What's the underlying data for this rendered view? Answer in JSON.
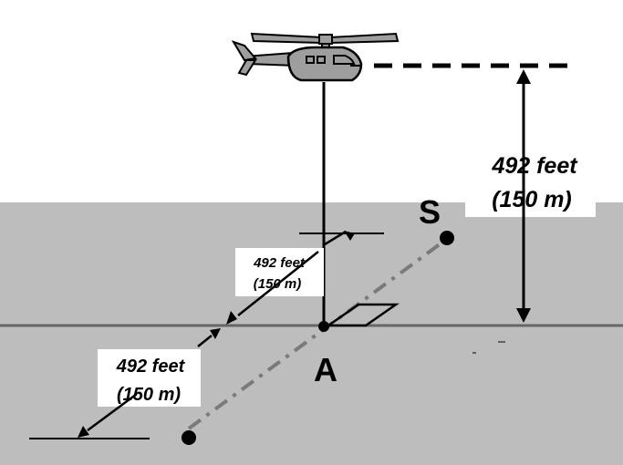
{
  "labels": {
    "altitude_feet": "492 feet",
    "altitude_m": "(150 m)",
    "upper_feet": "492 feet",
    "upper_m": "(150 m)",
    "lower_feet": "492 feet",
    "lower_m": "(150 m)",
    "point_s": "S",
    "point_a": "A"
  },
  "colors": {
    "sky": "#ffffff",
    "ground": "#bdbdbd",
    "horizon_line": "#666666",
    "flight_path": "#7a7a7a",
    "helicopter_body": "#9e9e9e",
    "ink": "#000000"
  },
  "icons": {
    "aircraft": "helicopter-icon"
  }
}
